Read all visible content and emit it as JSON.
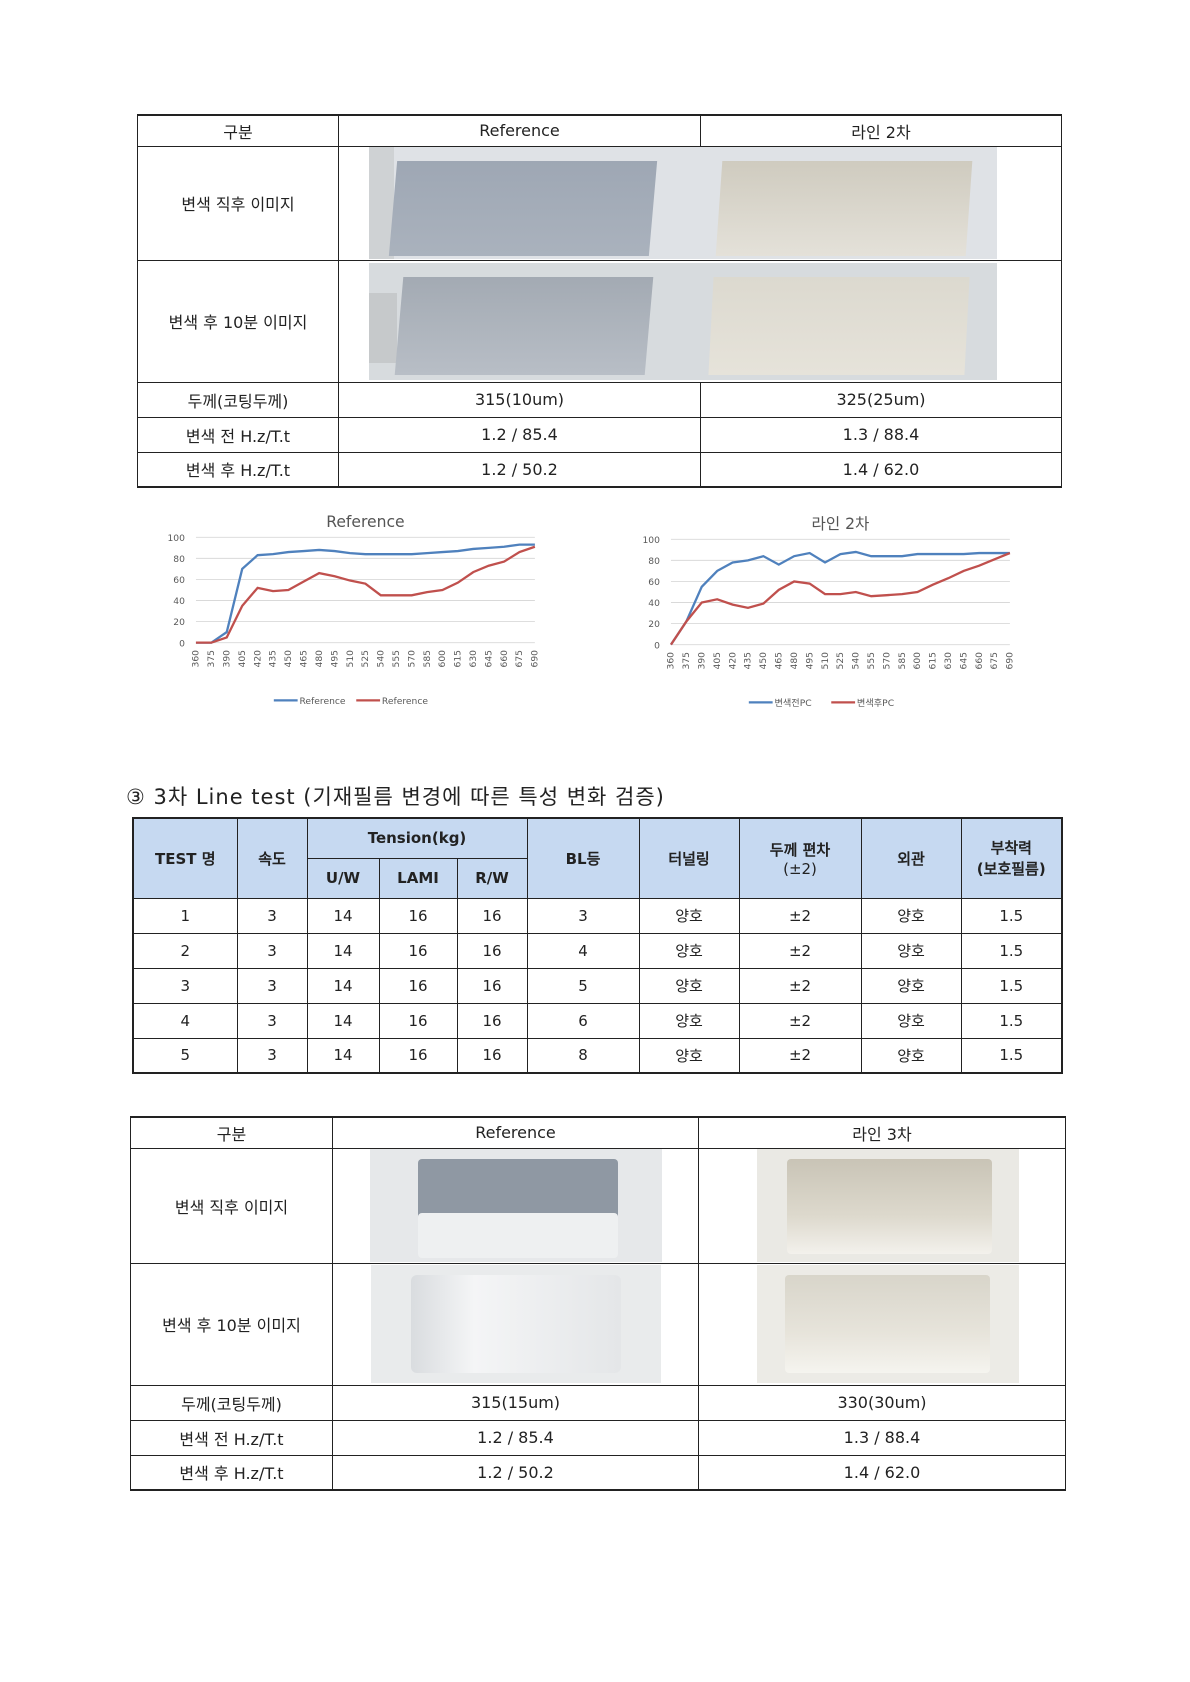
{
  "table1": {
    "headers": [
      "구분",
      "Reference",
      "라인 2차"
    ],
    "row_img1": "변색 직후 이미지",
    "row_img2": "변색 후 10분 이미지",
    "rows": [
      {
        "label": "두께(코팅두께)",
        "ref": "315(10um)",
        "line": "325(25um)"
      },
      {
        "label": "변색 전 H.z/T.t",
        "ref": "1.2 / 85.4",
        "line": "1.3 / 88.4"
      },
      {
        "label": "변색 후 H.z/T.t",
        "ref": "1.2 / 50.2",
        "line": "1.4 / 62.0"
      }
    ]
  },
  "chart_data": [
    {
      "type": "line",
      "title": "Reference",
      "x": [
        360,
        375,
        390,
        405,
        420,
        435,
        450,
        465,
        480,
        495,
        510,
        525,
        540,
        555,
        570,
        585,
        600,
        615,
        630,
        645,
        660,
        675,
        690
      ],
      "ylim": [
        0,
        100
      ],
      "yticks": [
        0,
        20,
        40,
        60,
        80,
        100
      ],
      "series": [
        {
          "name": "Reference",
          "color": "#4f81bd",
          "values": [
            0,
            0,
            10,
            70,
            83,
            84,
            86,
            87,
            88,
            87,
            85,
            84,
            84,
            84,
            84,
            85,
            86,
            87,
            89,
            90,
            91,
            93,
            93
          ]
        },
        {
          "name": "Reference",
          "color": "#c0504d",
          "values": [
            0,
            0,
            5,
            35,
            52,
            49,
            50,
            58,
            66,
            63,
            59,
            56,
            45,
            45,
            45,
            48,
            50,
            57,
            67,
            73,
            77,
            86,
            91
          ]
        }
      ]
    },
    {
      "type": "line",
      "title": "라인 2차",
      "x": [
        360,
        375,
        390,
        405,
        420,
        435,
        450,
        465,
        480,
        495,
        510,
        525,
        540,
        555,
        570,
        585,
        600,
        615,
        630,
        645,
        660,
        675,
        690
      ],
      "ylim": [
        0,
        100
      ],
      "yticks": [
        0,
        20,
        40,
        60,
        80,
        100
      ],
      "series": [
        {
          "name": "변색전PC",
          "color": "#4f81bd",
          "values": [
            0,
            22,
            55,
            70,
            78,
            80,
            84,
            76,
            84,
            87,
            78,
            86,
            88,
            84,
            84,
            84,
            86,
            86,
            86,
            86,
            87,
            87,
            87
          ]
        },
        {
          "name": "변색후PC",
          "color": "#c0504d",
          "values": [
            0,
            22,
            40,
            43,
            38,
            35,
            39,
            52,
            60,
            58,
            48,
            48,
            50,
            46,
            47,
            48,
            50,
            57,
            63,
            70,
            75,
            81,
            87
          ]
        }
      ]
    }
  ],
  "section_title": "③ 3차 Line test (기재필름 변경에 따른 특성 변화 검증)",
  "table2": {
    "headers": {
      "test": "TEST 명",
      "speed": "속도",
      "tension": "Tension(kg)",
      "uw": "U/W",
      "lami": "LAMI",
      "rw": "R/W",
      "bl": "BL등",
      "tunnel": "터널링",
      "thick": "두께 편차",
      "thick_sub": "(±2)",
      "appear": "외관",
      "adhesion": "부착력",
      "adhesion_sub": "(보호필름)"
    },
    "rows": [
      [
        "1",
        "3",
        "14",
        "16",
        "16",
        "3",
        "양호",
        "±2",
        "양호",
        "1.5"
      ],
      [
        "2",
        "3",
        "14",
        "16",
        "16",
        "4",
        "양호",
        "±2",
        "양호",
        "1.5"
      ],
      [
        "3",
        "3",
        "14",
        "16",
        "16",
        "5",
        "양호",
        "±2",
        "양호",
        "1.5"
      ],
      [
        "4",
        "3",
        "14",
        "16",
        "16",
        "6",
        "양호",
        "±2",
        "양호",
        "1.5"
      ],
      [
        "5",
        "3",
        "14",
        "16",
        "16",
        "8",
        "양호",
        "±2",
        "양호",
        "1.5"
      ]
    ]
  },
  "table3": {
    "headers": [
      "구분",
      "Reference",
      "라인 3차"
    ],
    "row_img1": "변색 직후 이미지",
    "row_img2": "변색 후 10분 이미지",
    "rows": [
      {
        "label": "두께(코팅두께)",
        "ref": "315(15um)",
        "line": "330(30um)"
      },
      {
        "label": "변색 전 H.z/T.t",
        "ref": "1.2 / 85.4",
        "line": "1.3 / 88.4"
      },
      {
        "label": "변색 후 H.z/T.t",
        "ref": "1.2 / 50.2",
        "line": "1.4 / 62.0"
      }
    ]
  }
}
